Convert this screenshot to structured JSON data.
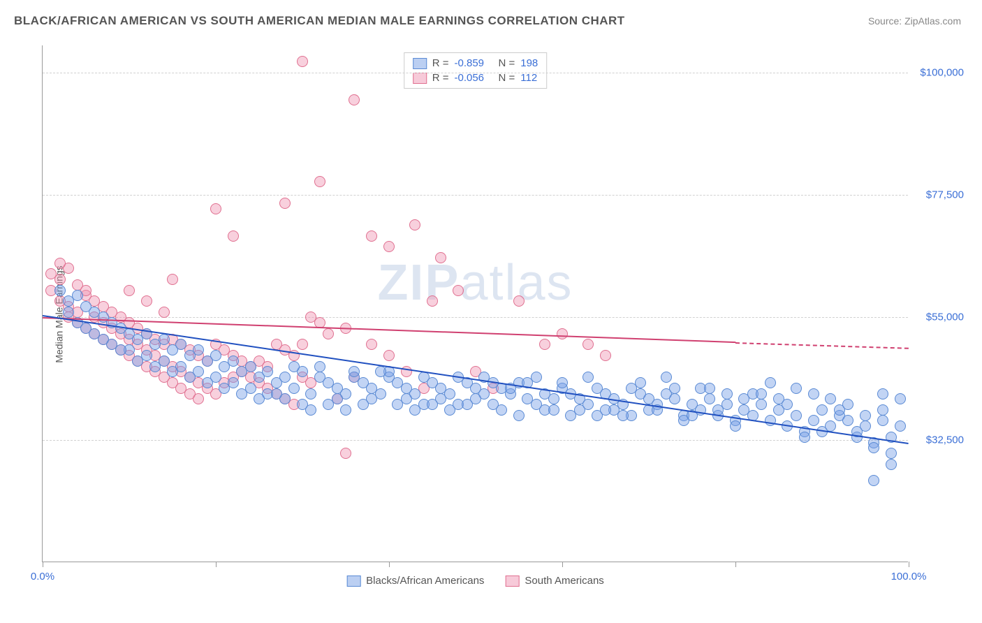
{
  "title": "BLACK/AFRICAN AMERICAN VS SOUTH AMERICAN MEDIAN MALE EARNINGS CORRELATION CHART",
  "source_label": "Source: ZipAtlas.com",
  "ylabel": "Median Male Earnings",
  "watermark_bold": "ZIP",
  "watermark_light": "atlas",
  "chart": {
    "type": "scatter",
    "background_color": "#ffffff",
    "grid_color": "#d0d0d0",
    "axis_color": "#999999",
    "xlim": [
      0,
      100
    ],
    "ylim": [
      10000,
      105000
    ],
    "xtick_positions": [
      0,
      20,
      40,
      60,
      80,
      100
    ],
    "xtick_labels": {
      "0": "0.0%",
      "100": "100.0%"
    },
    "ytick_values": [
      32500,
      55000,
      77500,
      100000
    ],
    "ytick_labels": [
      "$32,500",
      "$55,000",
      "$77,500",
      "$100,000"
    ],
    "label_fontsize": 15,
    "label_color": "#3b6fd6",
    "point_radius": 8,
    "point_border_width": 1,
    "series": [
      {
        "name": "Blacks/African Americans",
        "fill": "rgba(120,160,230,0.45)",
        "stroke": "#5a8ad4",
        "trend_color": "#2050c0",
        "R": "-0.859",
        "N": "198",
        "trend": {
          "x1": 0,
          "y1": 55500,
          "x2": 100,
          "y2": 32000,
          "dash_from_x": 100
        }
      },
      {
        "name": "South Americans",
        "fill": "rgba(240,150,180,0.45)",
        "stroke": "#e07090",
        "trend_color": "#d04070",
        "R": "-0.056",
        "N": "112",
        "trend": {
          "x1": 0,
          "y1": 55000,
          "x2": 80,
          "y2": 50500,
          "dash_to_x": 100,
          "dash_to_y": 49500
        }
      }
    ],
    "legend_swatch_border": {
      "blue": "#5a8ad4",
      "pink": "#e07090"
    },
    "legend_swatch_fill": {
      "blue": "rgba(120,160,230,0.5)",
      "pink": "rgba(240,150,180,0.5)"
    }
  },
  "stat_legend": {
    "rows": [
      {
        "swatch": "blue",
        "r_label": "R =",
        "r_val": "-0.859",
        "n_label": "N =",
        "n_val": "198"
      },
      {
        "swatch": "pink",
        "r_label": "R =",
        "r_val": "-0.056",
        "n_label": "N =",
        "n_val": "112"
      }
    ]
  },
  "bottom_legend": {
    "items": [
      {
        "swatch": "blue",
        "label": "Blacks/African Americans"
      },
      {
        "swatch": "pink",
        "label": "South Americans"
      }
    ]
  },
  "scatter_blue": [
    [
      2,
      60000
    ],
    [
      3,
      58000
    ],
    [
      4,
      59000
    ],
    [
      3,
      56000
    ],
    [
      5,
      57000
    ],
    [
      4,
      54000
    ],
    [
      6,
      56000
    ],
    [
      5,
      53000
    ],
    [
      7,
      55000
    ],
    [
      8,
      54000
    ],
    [
      6,
      52000
    ],
    [
      9,
      53000
    ],
    [
      10,
      52000
    ],
    [
      8,
      50000
    ],
    [
      11,
      51000
    ],
    [
      12,
      52000
    ],
    [
      10,
      49000
    ],
    [
      13,
      50000
    ],
    [
      14,
      51000
    ],
    [
      12,
      48000
    ],
    [
      15,
      49000
    ],
    [
      16,
      50000
    ],
    [
      14,
      47000
    ],
    [
      17,
      48000
    ],
    [
      18,
      49000
    ],
    [
      16,
      46000
    ],
    [
      19,
      47000
    ],
    [
      20,
      48000
    ],
    [
      18,
      45000
    ],
    [
      21,
      46000
    ],
    [
      22,
      47000
    ],
    [
      20,
      44000
    ],
    [
      23,
      45000
    ],
    [
      24,
      46000
    ],
    [
      22,
      43000
    ],
    [
      25,
      44000
    ],
    [
      26,
      45000
    ],
    [
      24,
      42000
    ],
    [
      27,
      43000
    ],
    [
      28,
      44000
    ],
    [
      26,
      41000
    ],
    [
      29,
      42000
    ],
    [
      30,
      45000
    ],
    [
      28,
      40000
    ],
    [
      31,
      41000
    ],
    [
      32,
      44000
    ],
    [
      30,
      39000
    ],
    [
      33,
      43000
    ],
    [
      34,
      42000
    ],
    [
      32,
      46000
    ],
    [
      35,
      41000
    ],
    [
      36,
      44000
    ],
    [
      34,
      40000
    ],
    [
      37,
      43000
    ],
    [
      38,
      42000
    ],
    [
      36,
      45000
    ],
    [
      39,
      41000
    ],
    [
      40,
      44000
    ],
    [
      38,
      40000
    ],
    [
      41,
      43000
    ],
    [
      42,
      42000
    ],
    [
      40,
      45000
    ],
    [
      43,
      41000
    ],
    [
      44,
      44000
    ],
    [
      42,
      40000
    ],
    [
      45,
      43000
    ],
    [
      46,
      42000
    ],
    [
      44,
      39000
    ],
    [
      47,
      41000
    ],
    [
      48,
      44000
    ],
    [
      46,
      40000
    ],
    [
      49,
      43000
    ],
    [
      50,
      42000
    ],
    [
      48,
      39000
    ],
    [
      51,
      41000
    ],
    [
      52,
      43000
    ],
    [
      50,
      40000
    ],
    [
      53,
      42000
    ],
    [
      54,
      41000
    ],
    [
      52,
      39000
    ],
    [
      55,
      43000
    ],
    [
      56,
      40000
    ],
    [
      54,
      42000
    ],
    [
      57,
      39000
    ],
    [
      58,
      41000
    ],
    [
      56,
      43000
    ],
    [
      59,
      40000
    ],
    [
      60,
      42000
    ],
    [
      58,
      38000
    ],
    [
      61,
      41000
    ],
    [
      62,
      40000
    ],
    [
      60,
      43000
    ],
    [
      63,
      39000
    ],
    [
      64,
      42000
    ],
    [
      62,
      38000
    ],
    [
      65,
      41000
    ],
    [
      66,
      40000
    ],
    [
      64,
      37000
    ],
    [
      67,
      39000
    ],
    [
      68,
      42000
    ],
    [
      66,
      38000
    ],
    [
      69,
      41000
    ],
    [
      70,
      40000
    ],
    [
      68,
      37000
    ],
    [
      71,
      39000
    ],
    [
      72,
      41000
    ],
    [
      70,
      38000
    ],
    [
      73,
      40000
    ],
    [
      74,
      37000
    ],
    [
      72,
      44000
    ],
    [
      75,
      39000
    ],
    [
      76,
      38000
    ],
    [
      74,
      36000
    ],
    [
      77,
      40000
    ],
    [
      78,
      37000
    ],
    [
      76,
      42000
    ],
    [
      79,
      39000
    ],
    [
      80,
      36000
    ],
    [
      78,
      38000
    ],
    [
      81,
      40000
    ],
    [
      82,
      37000
    ],
    [
      80,
      35000
    ],
    [
      83,
      39000
    ],
    [
      84,
      36000
    ],
    [
      82,
      41000
    ],
    [
      85,
      38000
    ],
    [
      86,
      35000
    ],
    [
      84,
      43000
    ],
    [
      87,
      37000
    ],
    [
      88,
      34000
    ],
    [
      86,
      39000
    ],
    [
      89,
      36000
    ],
    [
      90,
      38000
    ],
    [
      88,
      33000
    ],
    [
      91,
      35000
    ],
    [
      92,
      37000
    ],
    [
      90,
      34000
    ],
    [
      93,
      36000
    ],
    [
      94,
      33000
    ],
    [
      92,
      38000
    ],
    [
      95,
      35000
    ],
    [
      96,
      32000
    ],
    [
      94,
      34000
    ],
    [
      97,
      36000
    ],
    [
      98,
      33000
    ],
    [
      96,
      31000
    ],
    [
      99,
      35000
    ],
    [
      98,
      30000
    ],
    [
      97,
      38000
    ],
    [
      95,
      37000
    ],
    [
      93,
      39000
    ],
    [
      91,
      40000
    ],
    [
      89,
      41000
    ],
    [
      87,
      42000
    ],
    [
      85,
      40000
    ],
    [
      83,
      41000
    ],
    [
      81,
      38000
    ],
    [
      79,
      41000
    ],
    [
      77,
      42000
    ],
    [
      75,
      37000
    ],
    [
      73,
      42000
    ],
    [
      71,
      38000
    ],
    [
      69,
      43000
    ],
    [
      67,
      37000
    ],
    [
      65,
      38000
    ],
    [
      63,
      44000
    ],
    [
      61,
      37000
    ],
    [
      59,
      38000
    ],
    [
      57,
      44000
    ],
    [
      55,
      37000
    ],
    [
      53,
      38000
    ],
    [
      51,
      44000
    ],
    [
      49,
      39000
    ],
    [
      47,
      38000
    ],
    [
      45,
      39000
    ],
    [
      43,
      38000
    ],
    [
      41,
      39000
    ],
    [
      39,
      45000
    ],
    [
      37,
      39000
    ],
    [
      35,
      38000
    ],
    [
      33,
      39000
    ],
    [
      31,
      38000
    ],
    [
      29,
      46000
    ],
    [
      27,
      41000
    ],
    [
      25,
      40000
    ],
    [
      23,
      41000
    ],
    [
      21,
      42000
    ],
    [
      19,
      43000
    ],
    [
      17,
      44000
    ],
    [
      15,
      45000
    ],
    [
      13,
      46000
    ],
    [
      11,
      47000
    ],
    [
      9,
      49000
    ],
    [
      7,
      51000
    ],
    [
      96,
      25000
    ],
    [
      98,
      28000
    ],
    [
      99,
      40000
    ],
    [
      97,
      41000
    ]
  ],
  "scatter_pink": [
    [
      1,
      63000
    ],
    [
      2,
      62000
    ],
    [
      1,
      60000
    ],
    [
      3,
      64000
    ],
    [
      2,
      58000
    ],
    [
      4,
      61000
    ],
    [
      3,
      57000
    ],
    [
      5,
      59000
    ],
    [
      2,
      65000
    ],
    [
      4,
      56000
    ],
    [
      6,
      58000
    ],
    [
      3,
      55000
    ],
    [
      5,
      60000
    ],
    [
      7,
      57000
    ],
    [
      4,
      54000
    ],
    [
      6,
      55000
    ],
    [
      8,
      56000
    ],
    [
      5,
      53000
    ],
    [
      7,
      54000
    ],
    [
      9,
      55000
    ],
    [
      6,
      52000
    ],
    [
      8,
      53000
    ],
    [
      10,
      54000
    ],
    [
      7,
      51000
    ],
    [
      9,
      52000
    ],
    [
      11,
      53000
    ],
    [
      8,
      50000
    ],
    [
      10,
      51000
    ],
    [
      12,
      52000
    ],
    [
      9,
      49000
    ],
    [
      11,
      50000
    ],
    [
      13,
      51000
    ],
    [
      10,
      48000
    ],
    [
      12,
      49000
    ],
    [
      14,
      50000
    ],
    [
      11,
      47000
    ],
    [
      13,
      48000
    ],
    [
      15,
      51000
    ],
    [
      12,
      46000
    ],
    [
      14,
      47000
    ],
    [
      16,
      50000
    ],
    [
      13,
      45000
    ],
    [
      15,
      46000
    ],
    [
      17,
      49000
    ],
    [
      14,
      44000
    ],
    [
      16,
      45000
    ],
    [
      18,
      48000
    ],
    [
      15,
      43000
    ],
    [
      17,
      44000
    ],
    [
      19,
      47000
    ],
    [
      16,
      42000
    ],
    [
      18,
      43000
    ],
    [
      20,
      50000
    ],
    [
      17,
      41000
    ],
    [
      19,
      42000
    ],
    [
      21,
      49000
    ],
    [
      18,
      40000
    ],
    [
      20,
      41000
    ],
    [
      22,
      48000
    ],
    [
      21,
      43000
    ],
    [
      23,
      47000
    ],
    [
      22,
      44000
    ],
    [
      24,
      46000
    ],
    [
      23,
      45000
    ],
    [
      25,
      47000
    ],
    [
      24,
      44000
    ],
    [
      26,
      46000
    ],
    [
      25,
      43000
    ],
    [
      27,
      50000
    ],
    [
      26,
      42000
    ],
    [
      28,
      49000
    ],
    [
      27,
      41000
    ],
    [
      29,
      48000
    ],
    [
      28,
      40000
    ],
    [
      30,
      50000
    ],
    [
      29,
      39000
    ],
    [
      31,
      55000
    ],
    [
      30,
      44000
    ],
    [
      32,
      54000
    ],
    [
      31,
      43000
    ],
    [
      33,
      52000
    ],
    [
      34,
      40000
    ],
    [
      35,
      53000
    ],
    [
      36,
      44000
    ],
    [
      38,
      50000
    ],
    [
      40,
      48000
    ],
    [
      42,
      45000
    ],
    [
      44,
      42000
    ],
    [
      45,
      58000
    ],
    [
      30,
      102000
    ],
    [
      32,
      80000
    ],
    [
      36,
      95000
    ],
    [
      38,
      70000
    ],
    [
      40,
      68000
    ],
    [
      43,
      72000
    ],
    [
      46,
      66000
    ],
    [
      48,
      60000
    ],
    [
      55,
      58000
    ],
    [
      58,
      50000
    ],
    [
      60,
      52000
    ],
    [
      63,
      50000
    ],
    [
      65,
      48000
    ],
    [
      20,
      75000
    ],
    [
      22,
      70000
    ],
    [
      10,
      60000
    ],
    [
      12,
      58000
    ],
    [
      14,
      56000
    ],
    [
      50,
      45000
    ],
    [
      52,
      42000
    ],
    [
      15,
      62000
    ],
    [
      35,
      30000
    ],
    [
      28,
      76000
    ]
  ]
}
